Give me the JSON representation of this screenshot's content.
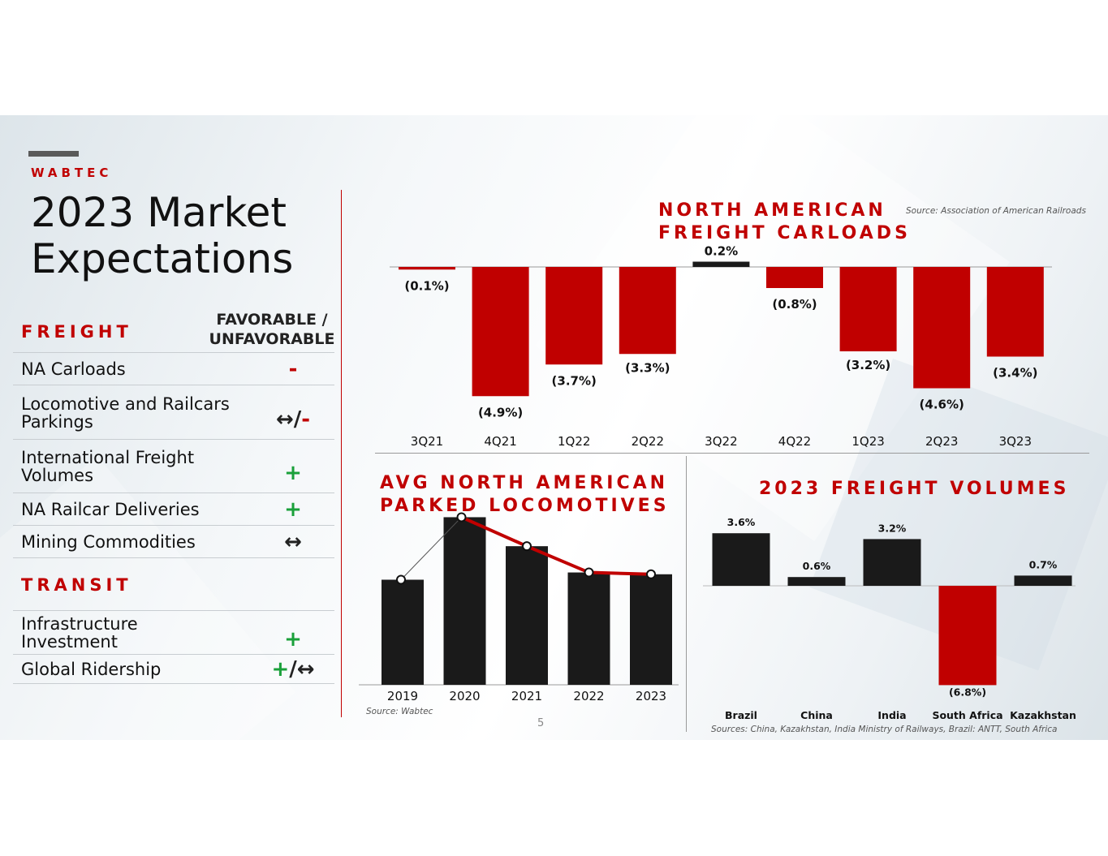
{
  "brand": "WABTEC",
  "title_line1": "2023 Market",
  "title_line2": "Expectations",
  "freight_header": "FREIGHT",
  "fav_header_line1": "FAVORABLE /",
  "fav_header_line2": "UNFAVORABLE",
  "freight_rows": [
    {
      "l1": "NA Carloads",
      "l2": "",
      "sym1": "",
      "sep": "",
      "sym2": "-"
    },
    {
      "l1": "Locomotive and Railcars",
      "l2": "Parkings",
      "sym1": "↔",
      "sep": "/",
      "sym2": "-"
    },
    {
      "l1": "International Freight",
      "l2": "Volumes",
      "sym1": "",
      "sep": "",
      "sym2": "+"
    },
    {
      "l1": "NA Railcar Deliveries",
      "l2": "",
      "sym1": "",
      "sep": "",
      "sym2": "+"
    },
    {
      "l1": "Mining Commodities",
      "l2": "",
      "sym1": "",
      "sep": "",
      "sym2": "↔"
    }
  ],
  "transit_header": "TRANSIT",
  "transit_rows": [
    {
      "l1": "Infrastructure",
      "l2": "Investment",
      "sym1": "",
      "sep": "",
      "sym2": "+"
    },
    {
      "l1": "Global Ridership",
      "l2": "",
      "sym1": "+",
      "sep": "/",
      "sym2": "↔"
    }
  ],
  "colors": {
    "red": "#c00000",
    "black": "#1a1a1a",
    "green": "#1aa03a"
  },
  "page_number": "5",
  "chart_data": [
    {
      "type": "bar",
      "title": "NORTH AMERICAN FREIGHT CARLOADS",
      "title_line1": "NORTH AMERICAN",
      "title_line2": "FREIGHT CARLOADS",
      "source": "Source: Association of American Railroads",
      "categories": [
        "3Q21",
        "4Q21",
        "1Q22",
        "2Q22",
        "3Q22",
        "4Q22",
        "1Q23",
        "2Q23",
        "3Q23"
      ],
      "values": [
        -0.1,
        -4.9,
        -3.7,
        -3.3,
        0.2,
        -0.8,
        -3.2,
        -4.6,
        -3.4
      ],
      "labels": [
        "(0.1%)",
        "(4.9%)",
        "(3.7%)",
        "(3.3%)",
        "0.2%",
        "(0.8%)",
        "(3.2%)",
        "(4.6%)",
        "(3.4%)"
      ]
    },
    {
      "type": "bar",
      "title": "AVG NORTH AMERICAN PARKED LOCOMOTIVES",
      "title_line1": "AVG NORTH AMERICAN",
      "title_line2": "PARKED LOCOMOTIVES",
      "source": "Source: Wabtec",
      "categories": [
        "2019",
        "2020",
        "2021",
        "2022",
        "2023"
      ],
      "values": [
        116,
        185,
        153,
        124,
        122
      ],
      "ylim": [
        0,
        200
      ],
      "trend_line": true
    },
    {
      "type": "bar",
      "title": "2023 FREIGHT VOLUMES",
      "source": "Sources: China, Kazakhstan, India Ministry of Railways, Brazil: ANTT, South Africa",
      "categories": [
        "Brazil",
        "China",
        "India",
        "South Africa",
        "Kazakhstan"
      ],
      "values": [
        3.6,
        0.6,
        3.2,
        -6.8,
        0.7
      ],
      "labels": [
        "3.6%",
        "0.6%",
        "3.2%",
        "(6.8%)",
        "0.7%"
      ]
    }
  ]
}
